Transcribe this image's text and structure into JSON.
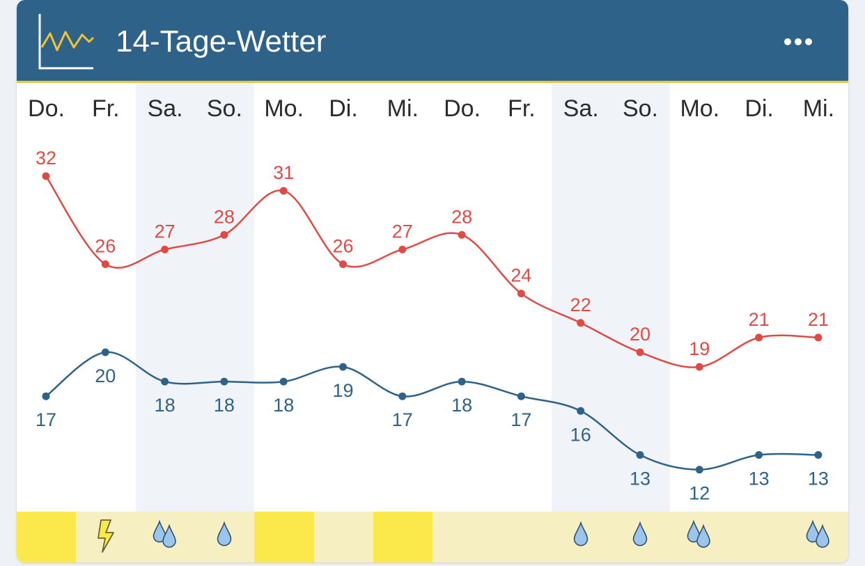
{
  "header": {
    "title": "14-Tage-Wetter",
    "logo_icon": "line-chart-icon",
    "menu_icon": "more-dots-icon"
  },
  "colors": {
    "header": "#2e6289",
    "accent_line": "#f1c232",
    "high_line": "#e14a44",
    "low_line": "#2e6289",
    "weekend_bg": "#f0f3f7",
    "sun_full": "#fbe84a",
    "sun_partial": "#f5efc1",
    "rain_drop": "#9cc5ec"
  },
  "chart_data": {
    "type": "line",
    "categories": [
      "Do.",
      "Fr.",
      "Sa.",
      "So.",
      "Mo.",
      "Di.",
      "Mi.",
      "Do.",
      "Fr.",
      "Sa.",
      "So.",
      "Mo.",
      "Di.",
      "Mi."
    ],
    "series": [
      {
        "name": "",
        "values": [
          32,
          26,
          27,
          28,
          31,
          26,
          27,
          28,
          24,
          22,
          20,
          19,
          21,
          21
        ]
      },
      {
        "name": "",
        "values": [
          17,
          20,
          18,
          18,
          18,
          19,
          17,
          18,
          17,
          16,
          13,
          12,
          13,
          13
        ]
      }
    ],
    "weekend_days": [
      2,
      3,
      9,
      10
    ],
    "conditions": [
      {
        "sun": "full",
        "icon": ""
      },
      {
        "sun": "partial",
        "icon": "lightning-icon"
      },
      {
        "sun": "partial",
        "icon": "double-raindrop-icon"
      },
      {
        "sun": "partial",
        "icon": "raindrop-icon"
      },
      {
        "sun": "full",
        "icon": ""
      },
      {
        "sun": "partial",
        "icon": ""
      },
      {
        "sun": "full",
        "icon": ""
      },
      {
        "sun": "partial",
        "icon": ""
      },
      {
        "sun": "partial",
        "icon": ""
      },
      {
        "sun": "partial",
        "icon": "raindrop-icon"
      },
      {
        "sun": "partial",
        "icon": "raindrop-icon"
      },
      {
        "sun": "partial",
        "icon": "double-raindrop-icon"
      },
      {
        "sun": "partial",
        "icon": ""
      },
      {
        "sun": "partial",
        "icon": "double-raindrop-icon"
      }
    ],
    "title": "",
    "xlabel": "",
    "ylabel": ""
  }
}
